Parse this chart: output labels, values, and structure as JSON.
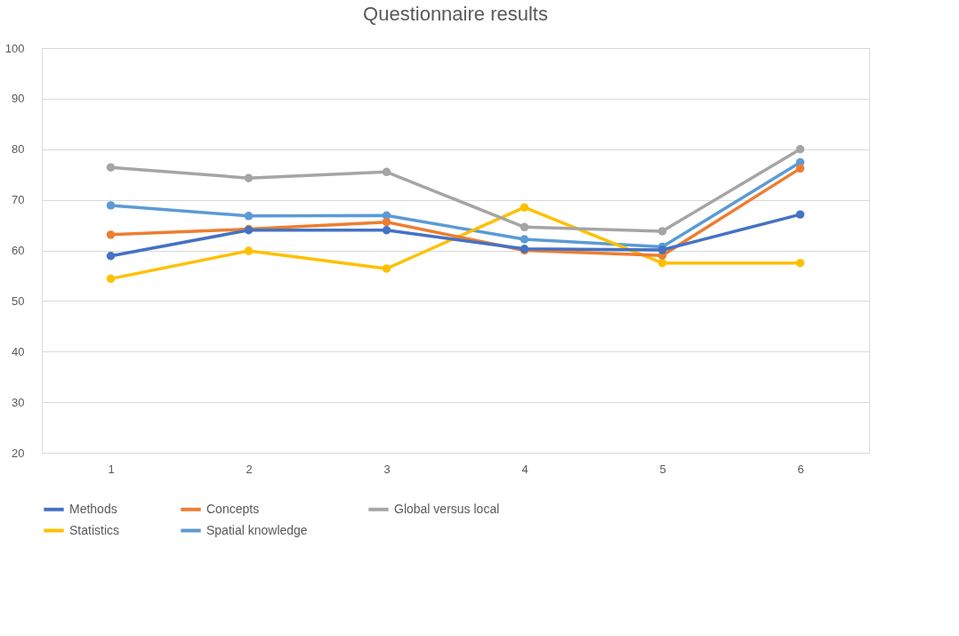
{
  "chart_data": {
    "type": "line",
    "title": "Questionnaire results",
    "categories": [
      "1",
      "2",
      "3",
      "4",
      "5",
      "6"
    ],
    "series": [
      {
        "name": "Methods",
        "color": "#4472c4",
        "values": [
          58.9,
          64.0,
          64.0,
          60.3,
          60.1,
          67.1
        ]
      },
      {
        "name": "Concepts",
        "color": "#ed7d31",
        "values": [
          63.1,
          64.2,
          65.6,
          60.0,
          59.0,
          76.2
        ]
      },
      {
        "name": "Global versus local",
        "color": "#a5a5a5",
        "values": [
          76.4,
          74.3,
          75.5,
          64.6,
          63.8,
          80.0
        ]
      },
      {
        "name": "Statistics",
        "color": "#ffc000",
        "values": [
          54.4,
          59.9,
          56.4,
          68.5,
          57.5,
          57.5
        ]
      },
      {
        "name": "Spatial knowledge",
        "color": "#5b9bd5",
        "values": [
          68.9,
          66.8,
          66.9,
          62.2,
          60.7,
          77.4
        ]
      }
    ],
    "ylim": [
      20,
      100
    ],
    "yticks": [
      20,
      30,
      40,
      50,
      60,
      70,
      80,
      90,
      100
    ],
    "grid": "y",
    "legend": "bottom",
    "marker": "circle",
    "line_style": "solid"
  }
}
